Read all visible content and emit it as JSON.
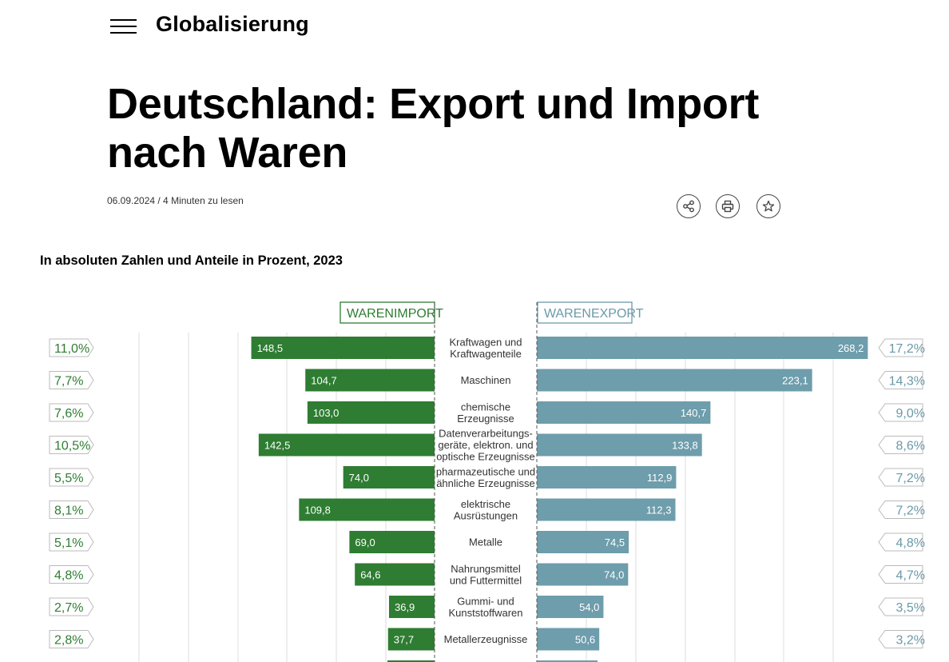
{
  "header": {
    "section_title": "Globalisierung"
  },
  "article": {
    "title_line1": "Deutschland: Export und Import",
    "title_line2": "nach Waren",
    "meta": "06.09.2024 / 4 Minuten zu lesen"
  },
  "icons": {
    "menu": "hamburger-menu-icon",
    "share": "share-icon",
    "print": "print-icon",
    "bookmark": "star-icon"
  },
  "colors": {
    "import": "#2e7d32",
    "export": "#6e9dac",
    "export_text": "#6a9aa8"
  },
  "chart_data": {
    "type": "bar",
    "subtitle": "In absoluten Zahlen und Anteile in Prozent, 2023",
    "legend": {
      "import": "WARENIMPORT",
      "export": "WARENEXPORT"
    },
    "categories": [
      [
        "Kraftwagen und",
        "Kraftwagenteile"
      ],
      [
        "Maschinen"
      ],
      [
        "chemische",
        "Erzeugnisse"
      ],
      [
        "Datenverarbeitungs-",
        "geräte, elektron. und",
        "optische Erzeugnisse"
      ],
      [
        "pharmazeutische und",
        "ähnliche Erzeugnisse"
      ],
      [
        "elektrische",
        "Ausrüstungen"
      ],
      [
        "Metalle"
      ],
      [
        "Nahrungsmittel",
        "und Futtermittel"
      ],
      [
        "Gummi- und",
        "Kunststoffwaren"
      ],
      [
        "Metallerzeugnisse"
      ]
    ],
    "series": [
      {
        "name": "WARENIMPORT",
        "values": [
          148.5,
          104.7,
          103.0,
          142.5,
          74.0,
          109.8,
          69.0,
          64.6,
          36.9,
          37.7
        ],
        "labels": [
          "148,5",
          "104,7",
          "103,0",
          "142,5",
          "74,0",
          "109,8",
          "69,0",
          "64,6",
          "36,9",
          "37,7"
        ],
        "shares": [
          "11,0%",
          "7,7%",
          "7,6%",
          "10,5%",
          "5,5%",
          "8,1%",
          "5,1%",
          "4,8%",
          "2,7%",
          "2,8%"
        ]
      },
      {
        "name": "WARENEXPORT",
        "values": [
          268.2,
          223.1,
          140.7,
          133.8,
          112.9,
          112.3,
          74.5,
          74.0,
          54.0,
          50.6
        ],
        "labels": [
          "268,2",
          "223,1",
          "140,7",
          "133,8",
          "112,9",
          "112,3",
          "74,5",
          "74,0",
          "54,0",
          "50,6"
        ],
        "shares": [
          "17,2%",
          "14,3%",
          "9,0%",
          "8,6%",
          "7,2%",
          "7,2%",
          "4,8%",
          "4,7%",
          "3,5%",
          "3,2%"
        ]
      }
    ],
    "grid": true
  }
}
